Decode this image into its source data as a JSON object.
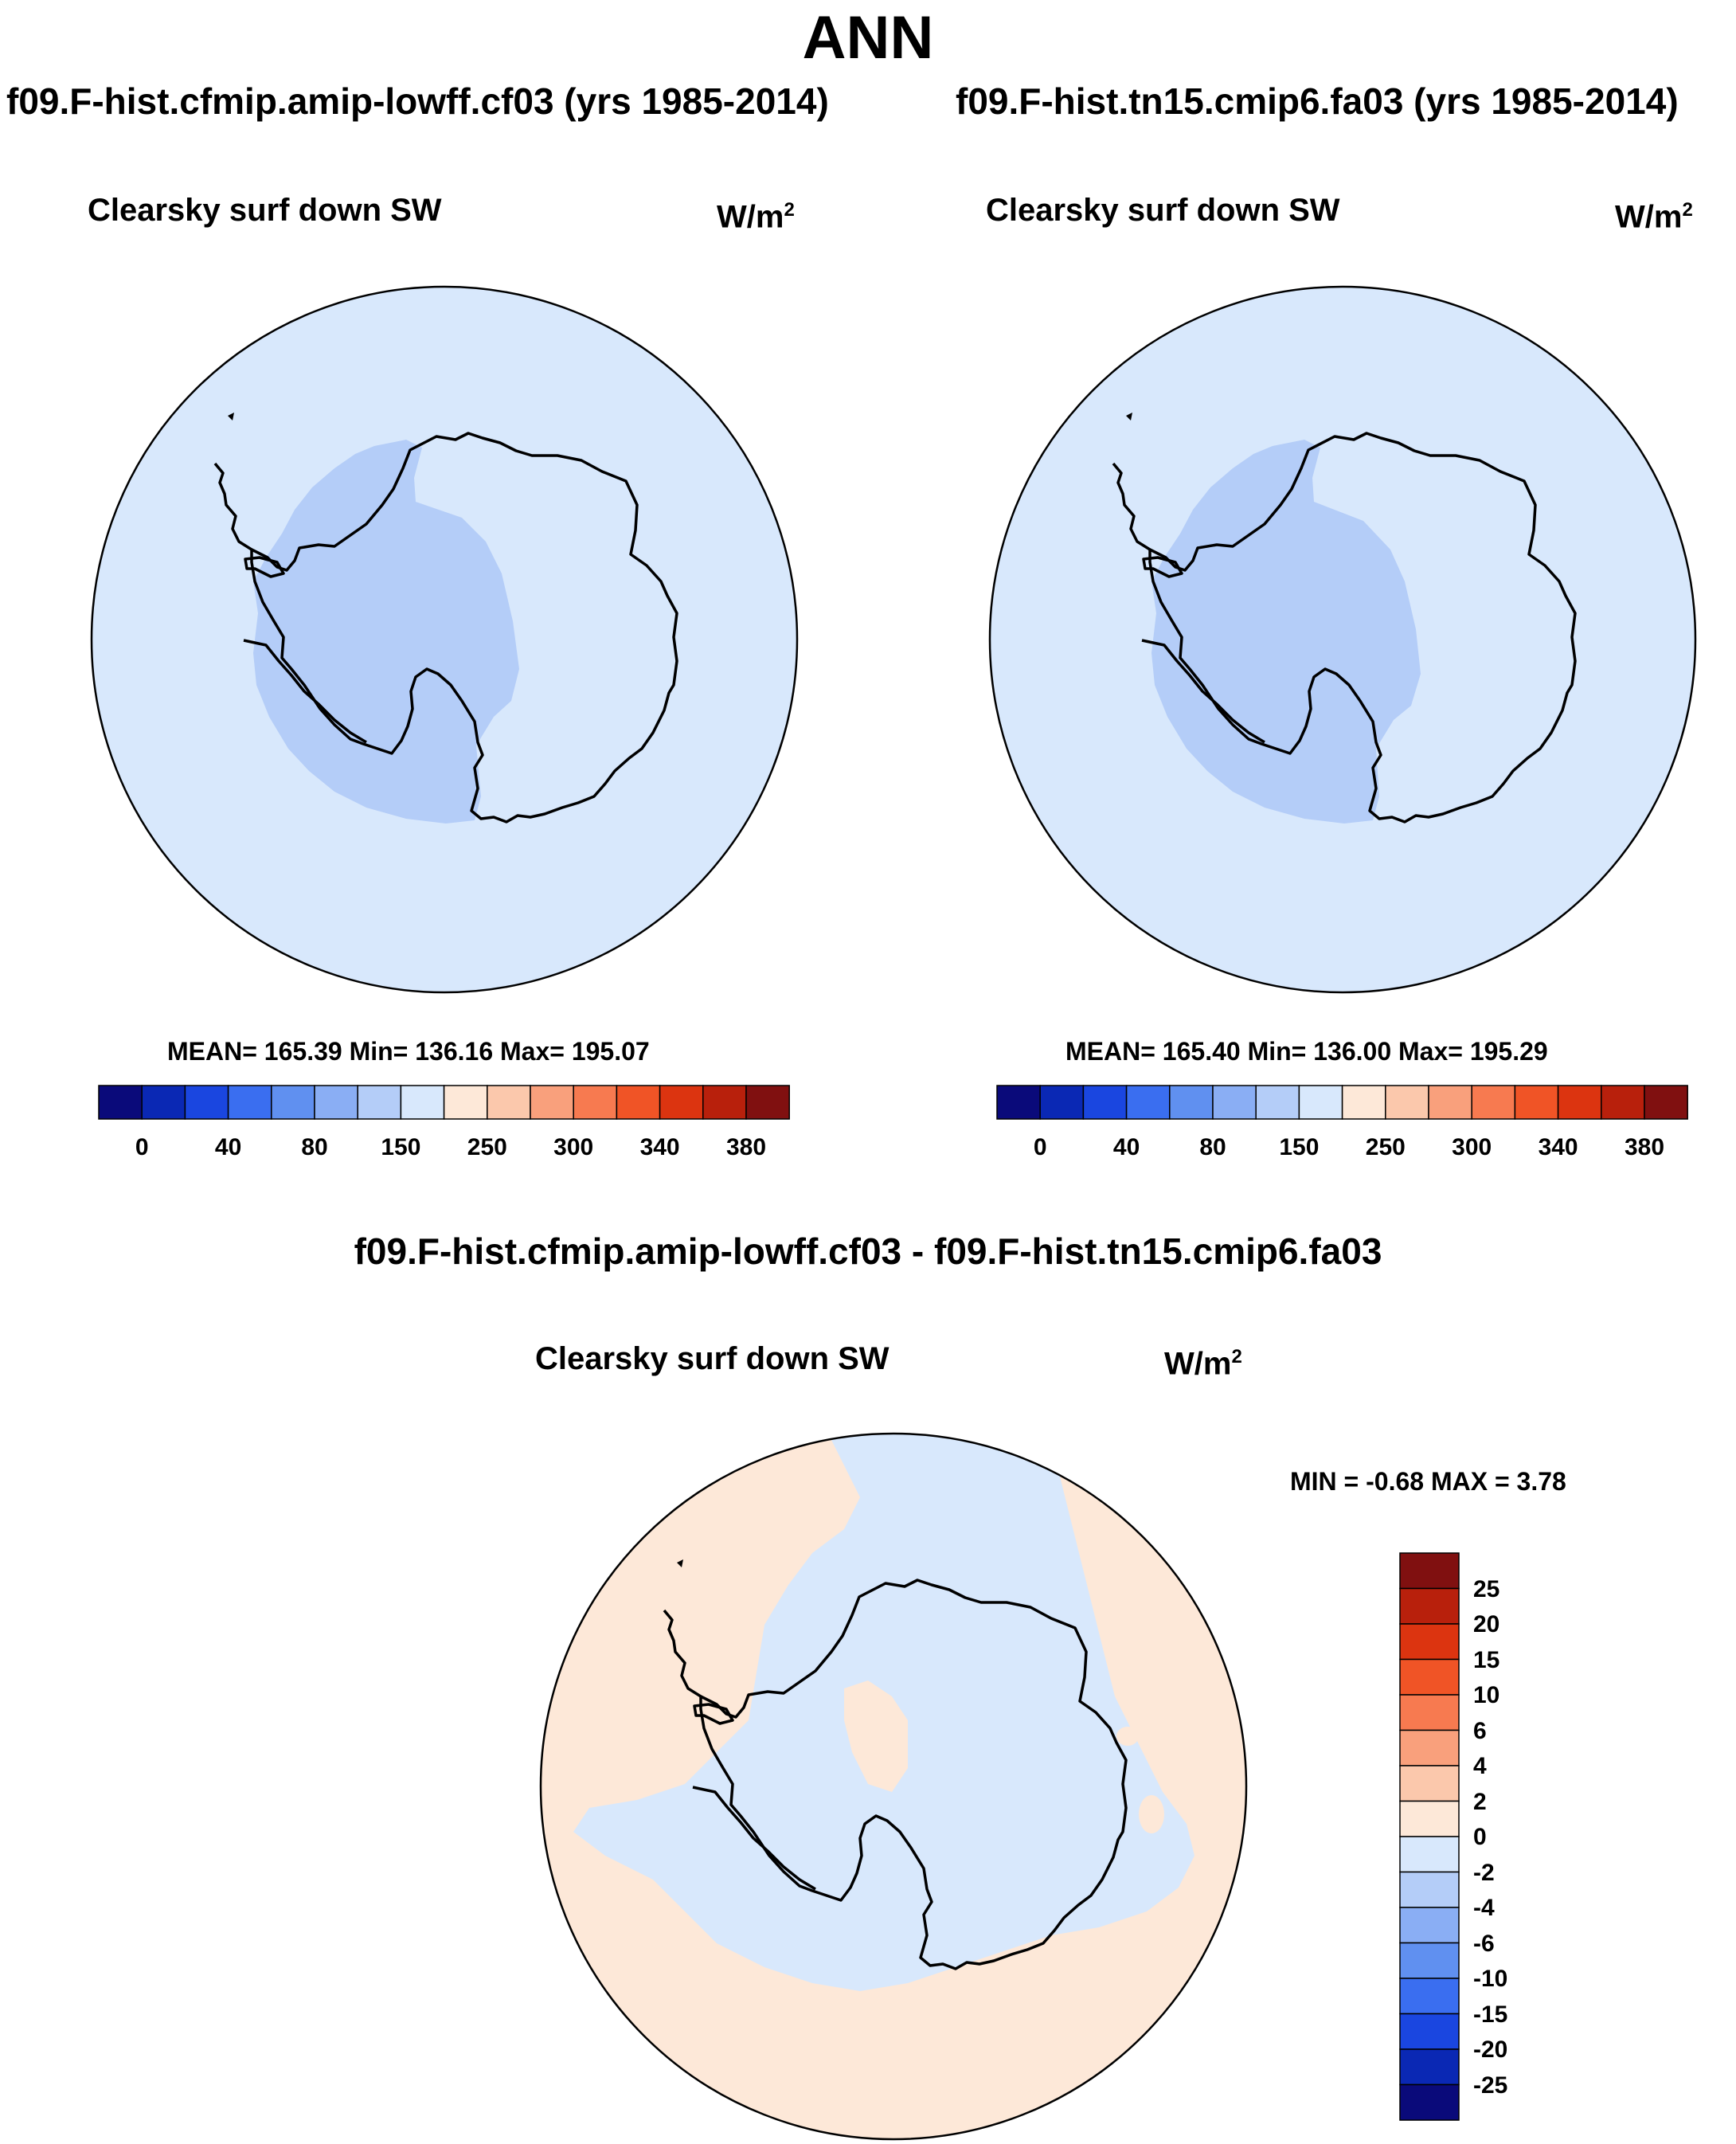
{
  "main_title": "ANN",
  "panels": [
    {
      "case_title": "f09.F-hist.cfmip.amip-lowff.cf03 (yrs 1985-2014)",
      "plot_title": "Clearsky surf down SW",
      "units": "W/m",
      "units_exp": "2",
      "stats": "MEAN= 165.39  Min= 136.16  Max= 195.07"
    },
    {
      "case_title": "f09.F-hist.tn15.cmip6.fa03 (yrs 1985-2014)",
      "plot_title": "Clearsky surf down SW",
      "units": "W/m",
      "units_exp": "2",
      "stats": "MEAN= 165.40  Min= 136.00  Max= 195.29"
    }
  ],
  "diff": {
    "title": "f09.F-hist.cfmip.amip-lowff.cf03 - f09.F-hist.tn15.cmip6.fa03",
    "plot_title": "Clearsky surf down SW",
    "units": "W/m",
    "units_exp": "2",
    "stats": "MIN =  -0.68 MAX =   3.78"
  },
  "colorbar_main": {
    "colors": [
      "#0a0a7a",
      "#0a28b4",
      "#1a46e0",
      "#3a6ef0",
      "#6090f0",
      "#8aaef4",
      "#b4cdf8",
      "#d8e8fc",
      "#fde8d8",
      "#fbc8ac",
      "#f9a07c",
      "#f77a50",
      "#f05426",
      "#dc3410",
      "#b8200c",
      "#801010"
    ],
    "labels": [
      "0",
      "40",
      "80",
      "150",
      "250",
      "300",
      "340",
      "380"
    ]
  },
  "colorbar_diff": {
    "colors": [
      "#801010",
      "#b8200c",
      "#dc3410",
      "#f05426",
      "#f77a50",
      "#f9a07c",
      "#fbc8ac",
      "#fde8d8",
      "#d8e8fc",
      "#b4cdf8",
      "#8aaef4",
      "#6090f0",
      "#3a6ef0",
      "#1a46e0",
      "#0a28b4",
      "#0a0a7a"
    ],
    "labels": [
      "25",
      "20",
      "15",
      "10",
      "6",
      "4",
      "2",
      "0",
      "-2",
      "-4",
      "-6",
      "-10",
      "-15",
      "-20",
      "-25"
    ]
  },
  "map_colors": {
    "ocean": "#d8e8fc",
    "interior_low": "#b4cdf8",
    "diff_positive": "#fde8d8",
    "diff_negative": "#d8e8fc"
  }
}
